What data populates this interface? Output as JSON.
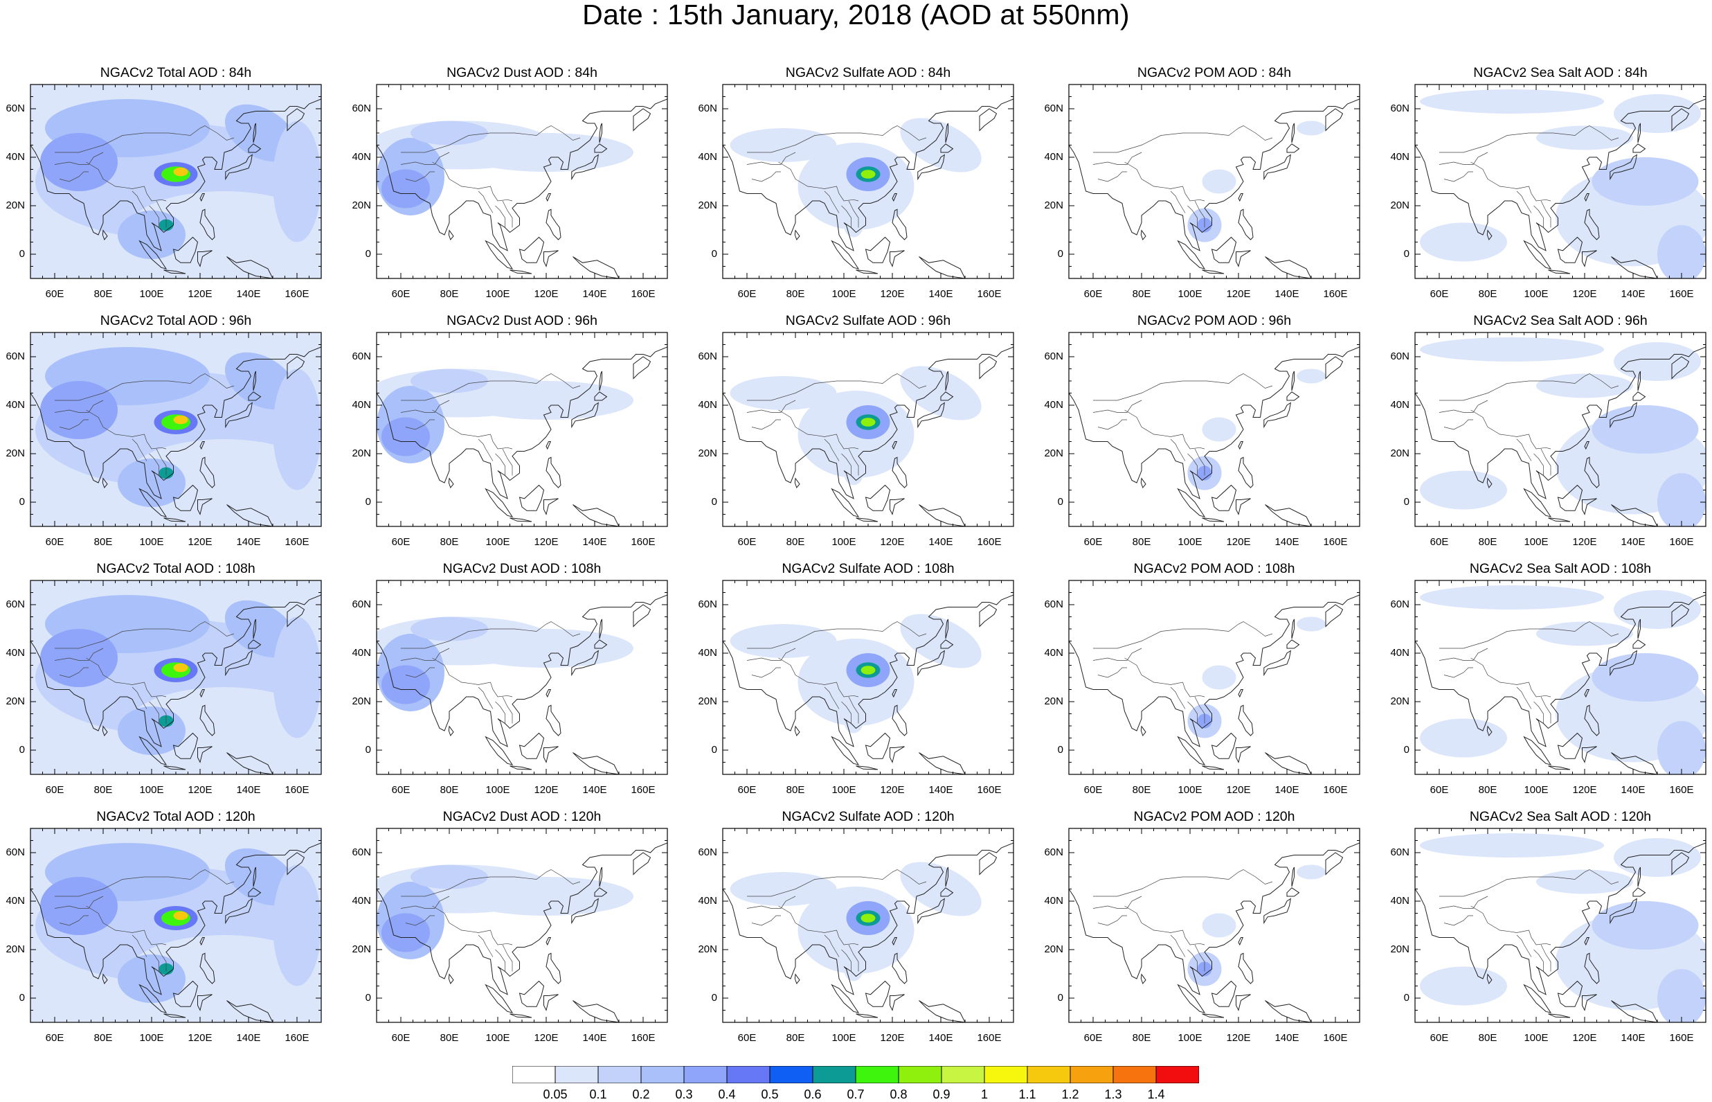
{
  "title": "Date : 15th January, 2018 (AOD at 550nm)",
  "map": {
    "lon_range": [
      50,
      170
    ],
    "lat_range": [
      -10,
      70
    ],
    "lat_ticks": [
      "60N",
      "40N",
      "20N",
      "0"
    ],
    "lon_ticks": [
      "60E",
      "80E",
      "100E",
      "120E",
      "140E",
      "160E"
    ]
  },
  "panels": [
    {
      "title": "NGACv2 Total AOD : 84h",
      "species": "total"
    },
    {
      "title": "NGACv2 Dust AOD : 84h",
      "species": "dust"
    },
    {
      "title": "NGACv2 Sulfate AOD : 84h",
      "species": "sulfate"
    },
    {
      "title": "NGACv2 POM AOD : 84h",
      "species": "pom"
    },
    {
      "title": "NGACv2 Sea Salt AOD : 84h",
      "species": "seasalt"
    },
    {
      "title": "NGACv2 Total AOD : 96h",
      "species": "total"
    },
    {
      "title": "NGACv2 Dust AOD : 96h",
      "species": "dust"
    },
    {
      "title": "NGACv2 Sulfate AOD : 96h",
      "species": "sulfate"
    },
    {
      "title": "NGACv2 POM AOD : 96h",
      "species": "pom"
    },
    {
      "title": "NGACv2 Sea Salt AOD : 96h",
      "species": "seasalt"
    },
    {
      "title": "NGACv2 Total AOD : 108h",
      "species": "total"
    },
    {
      "title": "NGACv2 Dust AOD : 108h",
      "species": "dust"
    },
    {
      "title": "NGACv2 Sulfate AOD : 108h",
      "species": "sulfate"
    },
    {
      "title": "NGACv2 POM AOD : 108h",
      "species": "pom"
    },
    {
      "title": "NGACv2 Sea Salt AOD : 108h",
      "species": "seasalt"
    },
    {
      "title": "NGACv2 Total AOD : 120h",
      "species": "total"
    },
    {
      "title": "NGACv2 Dust AOD : 120h",
      "species": "dust"
    },
    {
      "title": "NGACv2 Sulfate AOD : 120h",
      "species": "sulfate"
    },
    {
      "title": "NGACv2 POM AOD : 120h",
      "species": "pom"
    },
    {
      "title": "NGACv2 Sea Salt  AOD : 120h",
      "species": "seasalt"
    }
  ],
  "colorbar": {
    "labels": [
      "0.05",
      "0.1",
      "0.2",
      "0.3",
      "0.4",
      "0.5",
      "0.6",
      "0.7",
      "0.8",
      "0.9",
      "1",
      "1.1",
      "1.2",
      "1.3",
      "1.4"
    ],
    "colors": [
      "#ffffff",
      "#dce6fa",
      "#c2d2fa",
      "#a9c0fa",
      "#8ea5fa",
      "#6678f5",
      "#0f5ff5",
      "#0c9b95",
      "#3ef50e",
      "#8ff00e",
      "#c7f542",
      "#f7f70e",
      "#f7c90e",
      "#f7a10e",
      "#f7730e",
      "#f20e0e"
    ]
  }
}
